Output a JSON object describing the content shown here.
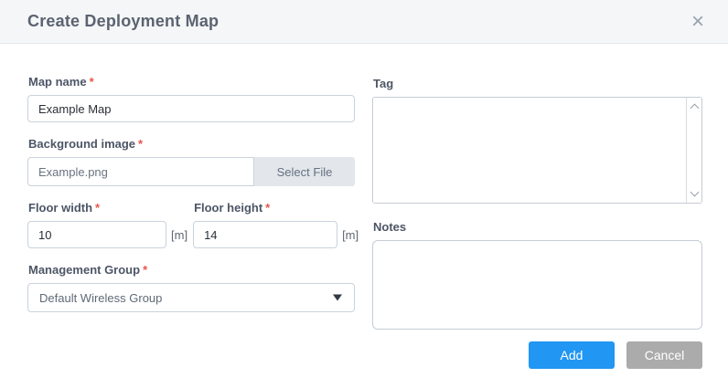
{
  "dialog": {
    "title": "Create Deployment Map",
    "close_icon_glyph": "×"
  },
  "required_mark": "*",
  "fields": {
    "map_name": {
      "label": "Map name",
      "value": "Example Map"
    },
    "background_image": {
      "label": "Background image",
      "value": "Example.png",
      "select_file_label": "Select File"
    },
    "floor_width": {
      "label": "Floor width",
      "value": "10",
      "unit": "[m]"
    },
    "floor_height": {
      "label": "Floor height",
      "value": "14",
      "unit": "[m]"
    },
    "management_group": {
      "label": "Management Group",
      "value": "Default Wireless Group"
    },
    "tag": {
      "label": "Tag",
      "value": ""
    },
    "notes": {
      "label": "Notes",
      "value": ""
    }
  },
  "buttons": {
    "add_label": "Add",
    "cancel_label": "Cancel"
  },
  "colors": {
    "accent_blue": "#2196f3",
    "cancel_gray": "#ababab",
    "required_red": "#e8564a",
    "header_bg": "#f5f6f8",
    "label_gray": "#4d5666",
    "input_border": "#c9d2dc"
  }
}
